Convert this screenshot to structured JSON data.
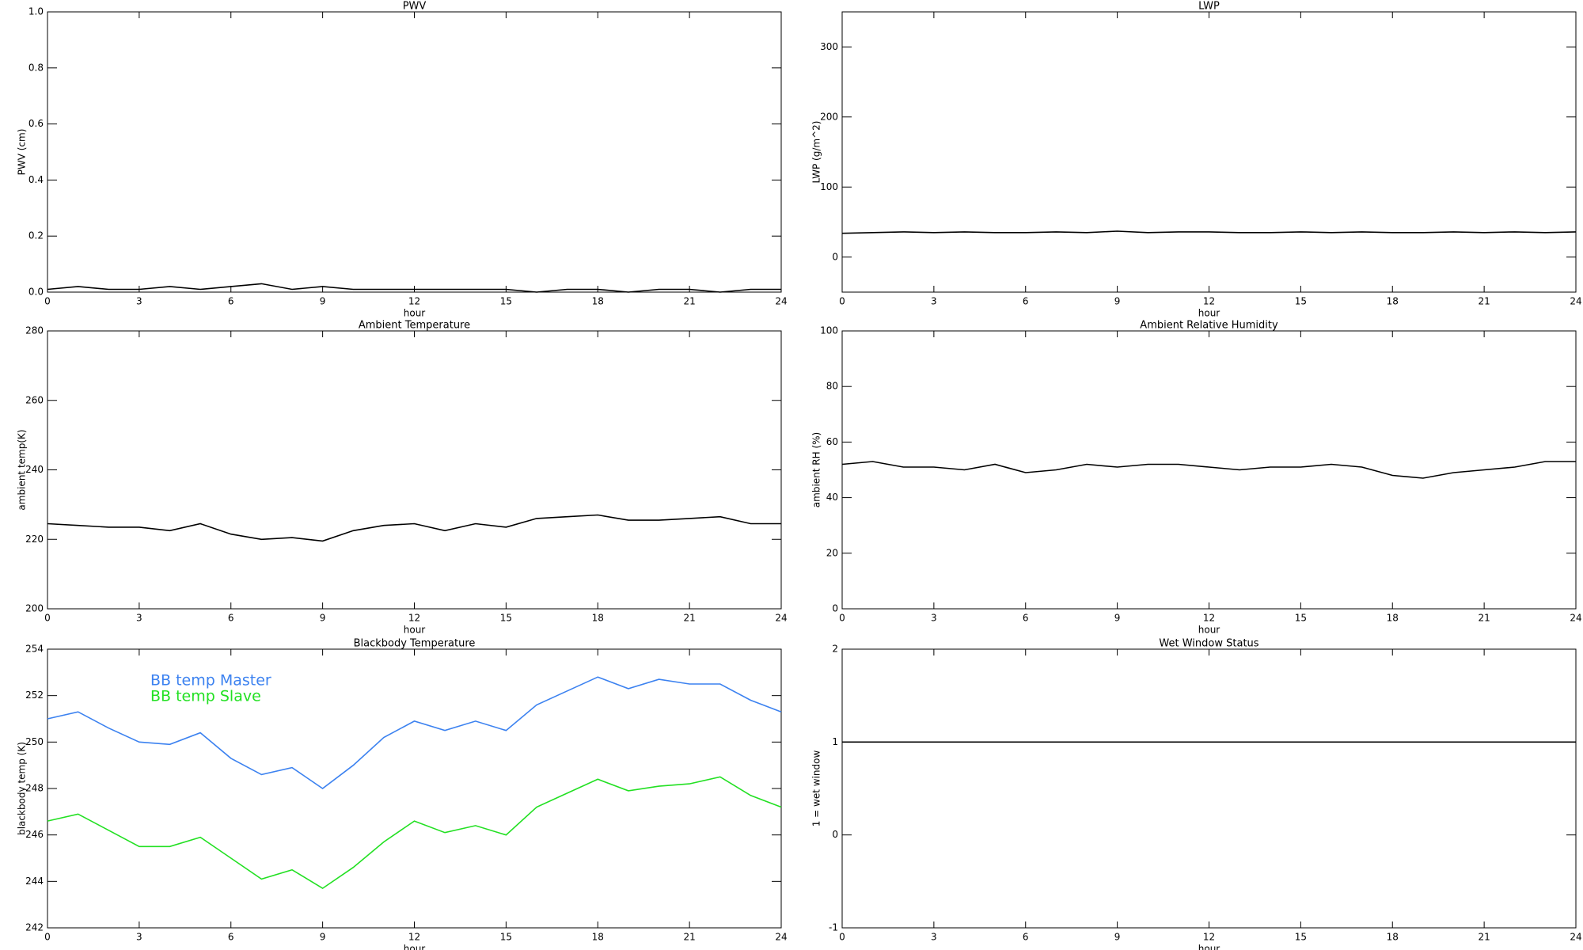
{
  "chart_data": [
    {
      "type": "line",
      "title": "PWV",
      "x_label": "hour",
      "y_label": "PWV (cm)",
      "x": [
        0,
        1,
        2,
        3,
        4,
        5,
        6,
        7,
        8,
        9,
        10,
        11,
        12,
        13,
        14,
        15,
        16,
        17,
        18,
        19,
        20,
        21,
        22,
        23,
        24
      ],
      "xlim": [
        0,
        24
      ],
      "xticks": [
        0,
        3,
        6,
        9,
        12,
        15,
        18,
        21,
        24
      ],
      "ylim": [
        0,
        1
      ],
      "yticks": [
        {
          "value": 0,
          "label": "0.0"
        },
        0.2,
        0.4,
        0.6,
        0.8,
        {
          "value": 1,
          "label": "1.0"
        }
      ],
      "series": [
        {
          "color": "#000000",
          "values": [
            0.01,
            0.02,
            0.01,
            0.01,
            0.02,
            0.01,
            0.02,
            0.03,
            0.01,
            0.02,
            0.01,
            0.01,
            0.01,
            0.01,
            0.01,
            0.01,
            0,
            0.01,
            0.01,
            0,
            0.01,
            0.01,
            0,
            0.01,
            0.01
          ]
        }
      ]
    },
    {
      "type": "line",
      "title": "LWP",
      "x_label": "hour",
      "y_label": "LWP (g/m^2)",
      "x": [
        0,
        1,
        2,
        3,
        4,
        5,
        6,
        7,
        8,
        9,
        10,
        11,
        12,
        13,
        14,
        15,
        16,
        17,
        18,
        19,
        20,
        21,
        22,
        23,
        24
      ],
      "xlim": [
        0,
        24
      ],
      "xticks": [
        0,
        3,
        6,
        9,
        12,
        15,
        18,
        21,
        24
      ],
      "ylim": [
        -50,
        350
      ],
      "yticks": [
        0,
        100,
        200,
        300
      ],
      "series": [
        {
          "color": "#000000",
          "values": [
            34,
            35,
            36,
            35,
            36,
            35,
            35,
            36,
            35,
            37,
            35,
            36,
            36,
            35,
            35,
            36,
            35,
            36,
            35,
            35,
            36,
            35,
            36,
            35,
            36
          ]
        }
      ]
    },
    {
      "type": "line",
      "title": "Ambient Temperature",
      "x_label": "hour",
      "y_label": "ambient temp(K)",
      "x": [
        0,
        1,
        2,
        3,
        4,
        5,
        6,
        7,
        8,
        9,
        10,
        11,
        12,
        13,
        14,
        15,
        16,
        17,
        18,
        19,
        20,
        21,
        22,
        23,
        24
      ],
      "xlim": [
        0,
        24
      ],
      "xticks": [
        0,
        3,
        6,
        9,
        12,
        15,
        18,
        21,
        24
      ],
      "ylim": [
        200,
        280
      ],
      "yticks": [
        200,
        220,
        240,
        260,
        280
      ],
      "series": [
        {
          "color": "#000000",
          "values": [
            224.5,
            224,
            223.5,
            223.5,
            222.5,
            224.5,
            221.5,
            220,
            220.5,
            219.5,
            222.5,
            224,
            224.5,
            222.5,
            224.5,
            223.5,
            226,
            226.5,
            227,
            225.5,
            225.5,
            226,
            226.5,
            224.5,
            224.5
          ]
        }
      ]
    },
    {
      "type": "line",
      "title": "Ambient Relative Humidity",
      "x_label": "hour",
      "y_label": "ambient RH (%)",
      "x": [
        0,
        1,
        2,
        3,
        4,
        5,
        6,
        7,
        8,
        9,
        10,
        11,
        12,
        13,
        14,
        15,
        16,
        17,
        18,
        19,
        20,
        21,
        22,
        23,
        24
      ],
      "xlim": [
        0,
        24
      ],
      "xticks": [
        0,
        3,
        6,
        9,
        12,
        15,
        18,
        21,
        24
      ],
      "ylim": [
        0,
        100
      ],
      "yticks": [
        0,
        20,
        40,
        60,
        80,
        100
      ],
      "series": [
        {
          "color": "#000000",
          "values": [
            52,
            53,
            51,
            51,
            50,
            52,
            49,
            50,
            52,
            51,
            52,
            52,
            51,
            50,
            51,
            51,
            52,
            51,
            48,
            47,
            49,
            50,
            51,
            53,
            53
          ]
        }
      ]
    },
    {
      "type": "line",
      "title": "Blackbody Temperature",
      "x_label": "hour",
      "y_label": "blackbody temp (K)",
      "x": [
        0,
        1,
        2,
        3,
        4,
        5,
        6,
        7,
        8,
        9,
        10,
        11,
        12,
        13,
        14,
        15,
        16,
        17,
        18,
        19,
        20,
        21,
        22,
        23,
        24
      ],
      "xlim": [
        0,
        24
      ],
      "xticks": [
        0,
        3,
        6,
        9,
        12,
        15,
        18,
        21,
        24
      ],
      "ylim": [
        242,
        254
      ],
      "yticks": [
        242,
        244,
        246,
        248,
        250,
        252,
        254
      ],
      "series": [
        {
          "name": "BB temp Master",
          "color": "#3c82f0",
          "values": [
            251.0,
            251.3,
            250.6,
            250.0,
            249.9,
            250.4,
            249.3,
            248.6,
            248.9,
            248.0,
            249.0,
            250.2,
            250.9,
            250.5,
            250.9,
            250.5,
            251.6,
            252.2,
            252.8,
            252.3,
            252.7,
            252.5,
            252.5,
            251.8,
            251.3
          ]
        },
        {
          "name": "BB temp Slave",
          "color": "#22e022",
          "values": [
            246.6,
            246.9,
            246.2,
            245.5,
            245.5,
            245.9,
            245.0,
            244.1,
            244.5,
            243.7,
            244.6,
            245.7,
            246.6,
            246.1,
            246.4,
            246.0,
            247.2,
            247.8,
            248.4,
            247.9,
            248.1,
            248.2,
            248.5,
            247.7,
            247.2
          ]
        }
      ]
    },
    {
      "type": "line",
      "title": "Wet Window Status",
      "x_label": "hour",
      "y_label": "1 = wet window",
      "x": [
        0,
        1,
        2,
        3,
        4,
        5,
        6,
        7,
        8,
        9,
        10,
        11,
        12,
        13,
        14,
        15,
        16,
        17,
        18,
        19,
        20,
        21,
        22,
        23,
        24
      ],
      "xlim": [
        0,
        24
      ],
      "xticks": [
        0,
        3,
        6,
        9,
        12,
        15,
        18,
        21,
        24
      ],
      "ylim": [
        -1,
        2
      ],
      "yticks": [
        -1,
        0,
        1,
        2
      ],
      "series": [
        {
          "color": "#000000",
          "values": [
            1,
            1,
            1,
            1,
            1,
            1,
            1,
            1,
            1,
            1,
            1,
            1,
            1,
            1,
            1,
            1,
            1,
            1,
            1,
            1,
            1,
            1,
            1,
            1,
            1
          ]
        }
      ]
    }
  ]
}
